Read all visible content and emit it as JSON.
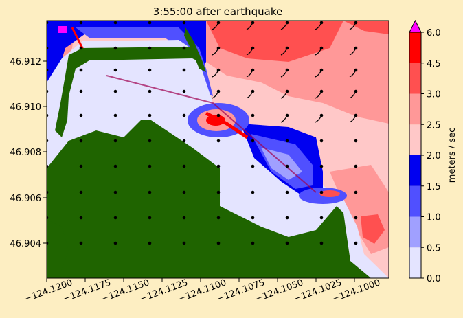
{
  "chart_data": {
    "type": "heatmap",
    "title": "3:55:00 after earthquake",
    "xlabel": "",
    "ylabel": "",
    "xlim": [
      -124.1205,
      -124.0982
    ],
    "ylim": [
      46.9025,
      46.9138
    ],
    "x_ticks": [
      -124.12,
      -124.1175,
      -124.115,
      -124.1125,
      -124.11,
      -124.1075,
      -124.105,
      -124.1025,
      -124.1
    ],
    "x_tick_labels": [
      "−124.1200",
      "−124.1175",
      "−124.1150",
      "−124.1125",
      "−124.1100",
      "−124.1075",
      "−124.1050",
      "−124.1025",
      "−124.1000"
    ],
    "y_ticks": [
      46.904,
      46.906,
      46.908,
      46.91,
      46.912
    ],
    "y_tick_labels": [
      "46.904",
      "46.906",
      "46.908",
      "46.910",
      "46.912"
    ],
    "colorbar": {
      "label": "meters / sec",
      "levels": [
        0.0,
        0.5,
        1.0,
        1.5,
        2.0,
        2.5,
        3.0,
        4.5,
        6.0
      ],
      "tick_labels": [
        "0.0",
        "0.5",
        "1.0",
        "1.5",
        "2.0",
        "2.5",
        "3.0",
        "4.5",
        "6.0"
      ],
      "colors": [
        "#e4e4ff",
        "#a0a0ff",
        "#5050ff",
        "#0000f0",
        "#ffc8c8",
        "#ff9898",
        "#ff5050",
        "#ff0000"
      ],
      "extend_color": "#ff00ff"
    },
    "land_color": "#1f6400",
    "arrow_color": "#000000",
    "grid": false
  }
}
